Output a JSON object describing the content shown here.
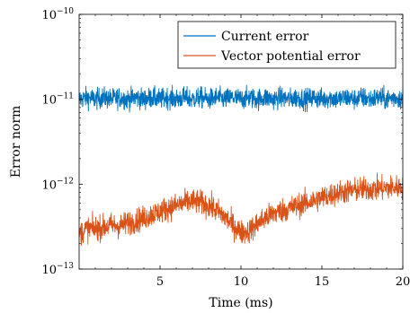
{
  "chart_data": {
    "type": "line",
    "title": "",
    "xlabel": "Time (ms)",
    "ylabel": "Error norm",
    "xlim": [
      0,
      20
    ],
    "ylim": [
      1e-13,
      1e-10
    ],
    "yscale": "log",
    "grid": false,
    "legend_position": "top-right",
    "x_ticks": [
      5,
      10,
      15,
      20
    ],
    "x_tick_labels": [
      "5",
      "10",
      "15",
      "20"
    ],
    "y_ticks": [
      1e-13,
      1e-12,
      1e-11,
      1e-10
    ],
    "y_tick_labels": [
      {
        "base": "10",
        "exp": "−13"
      },
      {
        "base": "10",
        "exp": "−12"
      },
      {
        "base": "10",
        "exp": "−11"
      },
      {
        "base": "10",
        "exp": "−10"
      }
    ],
    "series": [
      {
        "name": "Current error",
        "color": "#0072bd",
        "x": [
          0.0,
          0.5,
          1.0,
          1.5,
          2.0,
          2.5,
          3.0,
          3.5,
          4.0,
          4.5,
          5.0,
          5.5,
          6.0,
          6.5,
          7.0,
          7.5,
          8.0,
          8.5,
          9.0,
          9.5,
          10.0,
          10.5,
          11.0,
          11.5,
          12.0,
          12.5,
          13.0,
          13.5,
          14.0,
          14.5,
          15.0,
          15.5,
          16.0,
          16.5,
          17.0,
          17.5,
          18.0,
          18.5,
          19.0,
          19.5,
          20.0
        ],
        "y": [
          1e-11,
          1.05e-11,
          1e-11,
          1.05e-11,
          1e-11,
          1.05e-11,
          1e-11,
          1.05e-11,
          1e-11,
          1.05e-11,
          1e-11,
          1.05e-11,
          1e-11,
          1.05e-11,
          1e-11,
          1.05e-11,
          1e-11,
          1.05e-11,
          1e-11,
          1.05e-11,
          1e-11,
          1.05e-11,
          1e-11,
          1.05e-11,
          1e-11,
          1.05e-11,
          1e-11,
          1.05e-11,
          1e-11,
          1.05e-11,
          1e-11,
          1.05e-11,
          1e-11,
          1.05e-11,
          1e-11,
          1.05e-11,
          1e-11,
          1.05e-11,
          1e-11,
          1.05e-11,
          1e-11
        ]
      },
      {
        "name": "Vector potential error",
        "color": "#d95319",
        "x": [
          0.0,
          0.5,
          1.0,
          1.5,
          2.0,
          2.5,
          3.0,
          3.5,
          4.0,
          4.5,
          5.0,
          5.5,
          6.0,
          6.5,
          7.0,
          7.5,
          8.0,
          8.5,
          9.0,
          9.5,
          10.0,
          10.5,
          11.0,
          11.5,
          12.0,
          12.5,
          13.0,
          13.5,
          14.0,
          14.5,
          15.0,
          15.5,
          16.0,
          16.5,
          17.0,
          17.5,
          18.0,
          18.5,
          19.0,
          19.5,
          20.0
        ],
        "y": [
          2.6e-13,
          3e-13,
          3e-13,
          3.1e-13,
          3.3e-13,
          3.2e-13,
          3.5e-13,
          3.7e-13,
          4e-13,
          4.4e-13,
          4.8e-13,
          5.2e-13,
          5.6e-13,
          6e-13,
          6.3e-13,
          6.1e-13,
          5.6e-13,
          4.9e-13,
          4.1e-13,
          3.3e-13,
          2.7e-13,
          2.8e-13,
          3.4e-13,
          4e-13,
          4.5e-13,
          4.9e-13,
          5.2e-13,
          5.6e-13,
          6e-13,
          6.4e-13,
          6.9e-13,
          7.4e-13,
          7.9e-13,
          8.2e-13,
          8.5e-13,
          8.7e-13,
          8.8e-13,
          8.9e-13,
          9e-13,
          9.1e-13,
          9.3e-13
        ]
      }
    ]
  }
}
